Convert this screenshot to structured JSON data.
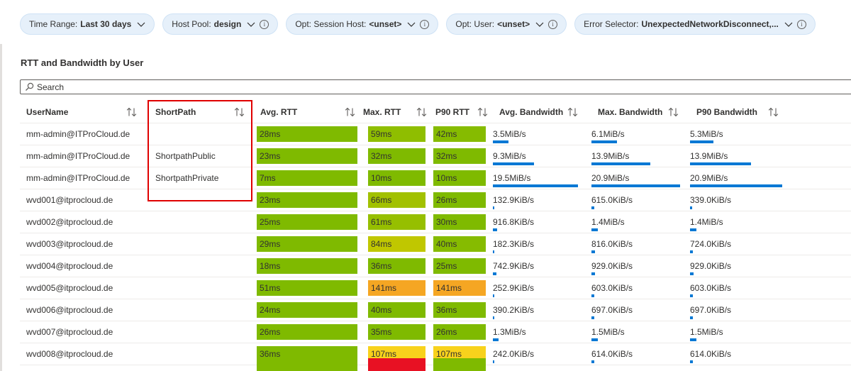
{
  "filters": [
    {
      "label": "Time Range:",
      "value": "Last 30 days",
      "info": false
    },
    {
      "label": "Host Pool:",
      "value": "design",
      "info": true
    },
    {
      "label": "Opt: Session Host:",
      "value": "<unset>",
      "info": true
    },
    {
      "label": "Opt: User:",
      "value": "<unset>",
      "info": true
    },
    {
      "label": "Error Selector:",
      "value": "UnexpectedNetworkDisconnect,...",
      "info": true
    }
  ],
  "section_title": "RTT and Bandwidth by User",
  "search": {
    "placeholder": "Search"
  },
  "columns": [
    "UserName",
    "ShortPath",
    "Avg. RTT",
    "Max. RTT",
    "P90 RTT",
    "Avg. Bandwidth",
    "Max. Bandwidth",
    "P90 Bandwidth"
  ],
  "rows": [
    {
      "user": "mm-admin@ITProCloud.de",
      "shortpath": "",
      "avg": "28ms",
      "max": "59ms",
      "p90": "42ms",
      "avgbw": "3.5MiB/s",
      "maxbw": "6.1MiB/s",
      "p90bw": "5.3MiB/s",
      "avgc": "#7fba00",
      "maxc": "#8fbe00",
      "p90c": "#86bb00",
      "avgf": 0.18,
      "maxf": 0.29,
      "p90f": 0.25
    },
    {
      "user": "mm-admin@ITProCloud.de",
      "shortpath": "ShortpathPublic",
      "avg": "23ms",
      "max": "32ms",
      "p90": "32ms",
      "avgbw": "9.3MiB/s",
      "maxbw": "13.9MiB/s",
      "p90bw": "13.9MiB/s",
      "avgc": "#7fba00",
      "maxc": "#7fba00",
      "p90c": "#7fba00",
      "avgf": 0.48,
      "maxf": 0.66,
      "p90f": 0.66
    },
    {
      "user": "mm-admin@ITProCloud.de",
      "shortpath": "ShortpathPrivate",
      "avg": "7ms",
      "max": "10ms",
      "p90": "10ms",
      "avgbw": "19.5MiB/s",
      "maxbw": "20.9MiB/s",
      "p90bw": "20.9MiB/s",
      "avgc": "#7fba00",
      "maxc": "#7fba00",
      "p90c": "#7fba00",
      "avgf": 1.0,
      "maxf": 1.0,
      "p90f": 1.0
    },
    {
      "user": "wvd001@itprocloud.de",
      "shortpath": "",
      "avg": "23ms",
      "max": "66ms",
      "p90": "26ms",
      "avgbw": "132.9KiB/s",
      "maxbw": "615.0KiB/s",
      "p90bw": "339.0KiB/s",
      "avgc": "#7fba00",
      "maxc": "#a2c100",
      "p90c": "#7fba00",
      "avgf": 0.01,
      "maxf": 0.03,
      "p90f": 0.02
    },
    {
      "user": "wvd002@itprocloud.de",
      "shortpath": "",
      "avg": "25ms",
      "max": "61ms",
      "p90": "30ms",
      "avgbw": "916.8KiB/s",
      "maxbw": "1.4MiB/s",
      "p90bw": "1.4MiB/s",
      "avgc": "#7fba00",
      "maxc": "#96bf00",
      "p90c": "#7fba00",
      "avgf": 0.05,
      "maxf": 0.07,
      "p90f": 0.07
    },
    {
      "user": "wvd003@itprocloud.de",
      "shortpath": "",
      "avg": "29ms",
      "max": "84ms",
      "p90": "40ms",
      "avgbw": "182.3KiB/s",
      "maxbw": "816.0KiB/s",
      "p90bw": "724.0KiB/s",
      "avgc": "#7fba00",
      "maxc": "#c0c700",
      "p90c": "#86bb00",
      "avgf": 0.01,
      "maxf": 0.04,
      "p90f": 0.03
    },
    {
      "user": "wvd004@itprocloud.de",
      "shortpath": "",
      "avg": "18ms",
      "max": "36ms",
      "p90": "25ms",
      "avgbw": "742.9KiB/s",
      "maxbw": "929.0KiB/s",
      "p90bw": "929.0KiB/s",
      "avgc": "#7fba00",
      "maxc": "#7fba00",
      "p90c": "#7fba00",
      "avgf": 0.04,
      "maxf": 0.04,
      "p90f": 0.04
    },
    {
      "user": "wvd005@itprocloud.de",
      "shortpath": "",
      "avg": "51ms",
      "max": "141ms",
      "p90": "141ms",
      "avgbw": "252.9KiB/s",
      "maxbw": "603.0KiB/s",
      "p90bw": "603.0KiB/s",
      "avgc": "#7fba00",
      "maxc": "#f5a623",
      "p90c": "#f5a623",
      "avgf": 0.01,
      "maxf": 0.03,
      "p90f": 0.03
    },
    {
      "user": "wvd006@itprocloud.de",
      "shortpath": "",
      "avg": "24ms",
      "max": "40ms",
      "p90": "36ms",
      "avgbw": "390.2KiB/s",
      "maxbw": "697.0KiB/s",
      "p90bw": "697.0KiB/s",
      "avgc": "#7fba00",
      "maxc": "#7fba00",
      "p90c": "#7fba00",
      "avgf": 0.02,
      "maxf": 0.03,
      "p90f": 0.03
    },
    {
      "user": "wvd007@itprocloud.de",
      "shortpath": "",
      "avg": "26ms",
      "max": "35ms",
      "p90": "26ms",
      "avgbw": "1.3MiB/s",
      "maxbw": "1.5MiB/s",
      "p90bw": "1.5MiB/s",
      "avgc": "#7fba00",
      "maxc": "#7fba00",
      "p90c": "#7fba00",
      "avgf": 0.07,
      "maxf": 0.07,
      "p90f": 0.07
    },
    {
      "user": "wvd008@itprocloud.de",
      "shortpath": "",
      "avg": "36ms",
      "max": "107ms",
      "p90": "107ms",
      "avgbw": "242.0KiB/s",
      "maxbw": "614.0KiB/s",
      "p90bw": "614.0KiB/s",
      "avgc": "#7fba00",
      "maxc": "#f8d21c",
      "p90c": "#f8d21c",
      "avgf": 0.01,
      "maxf": 0.03,
      "p90f": 0.03
    }
  ],
  "partial_row": {
    "avgc": "#7fba00",
    "maxc": "#e81123",
    "p90c": "#7fba00"
  },
  "colors": {
    "accent": "#0078d4",
    "highlight": "#e00000",
    "pill_bg": "#e6f0fa"
  }
}
